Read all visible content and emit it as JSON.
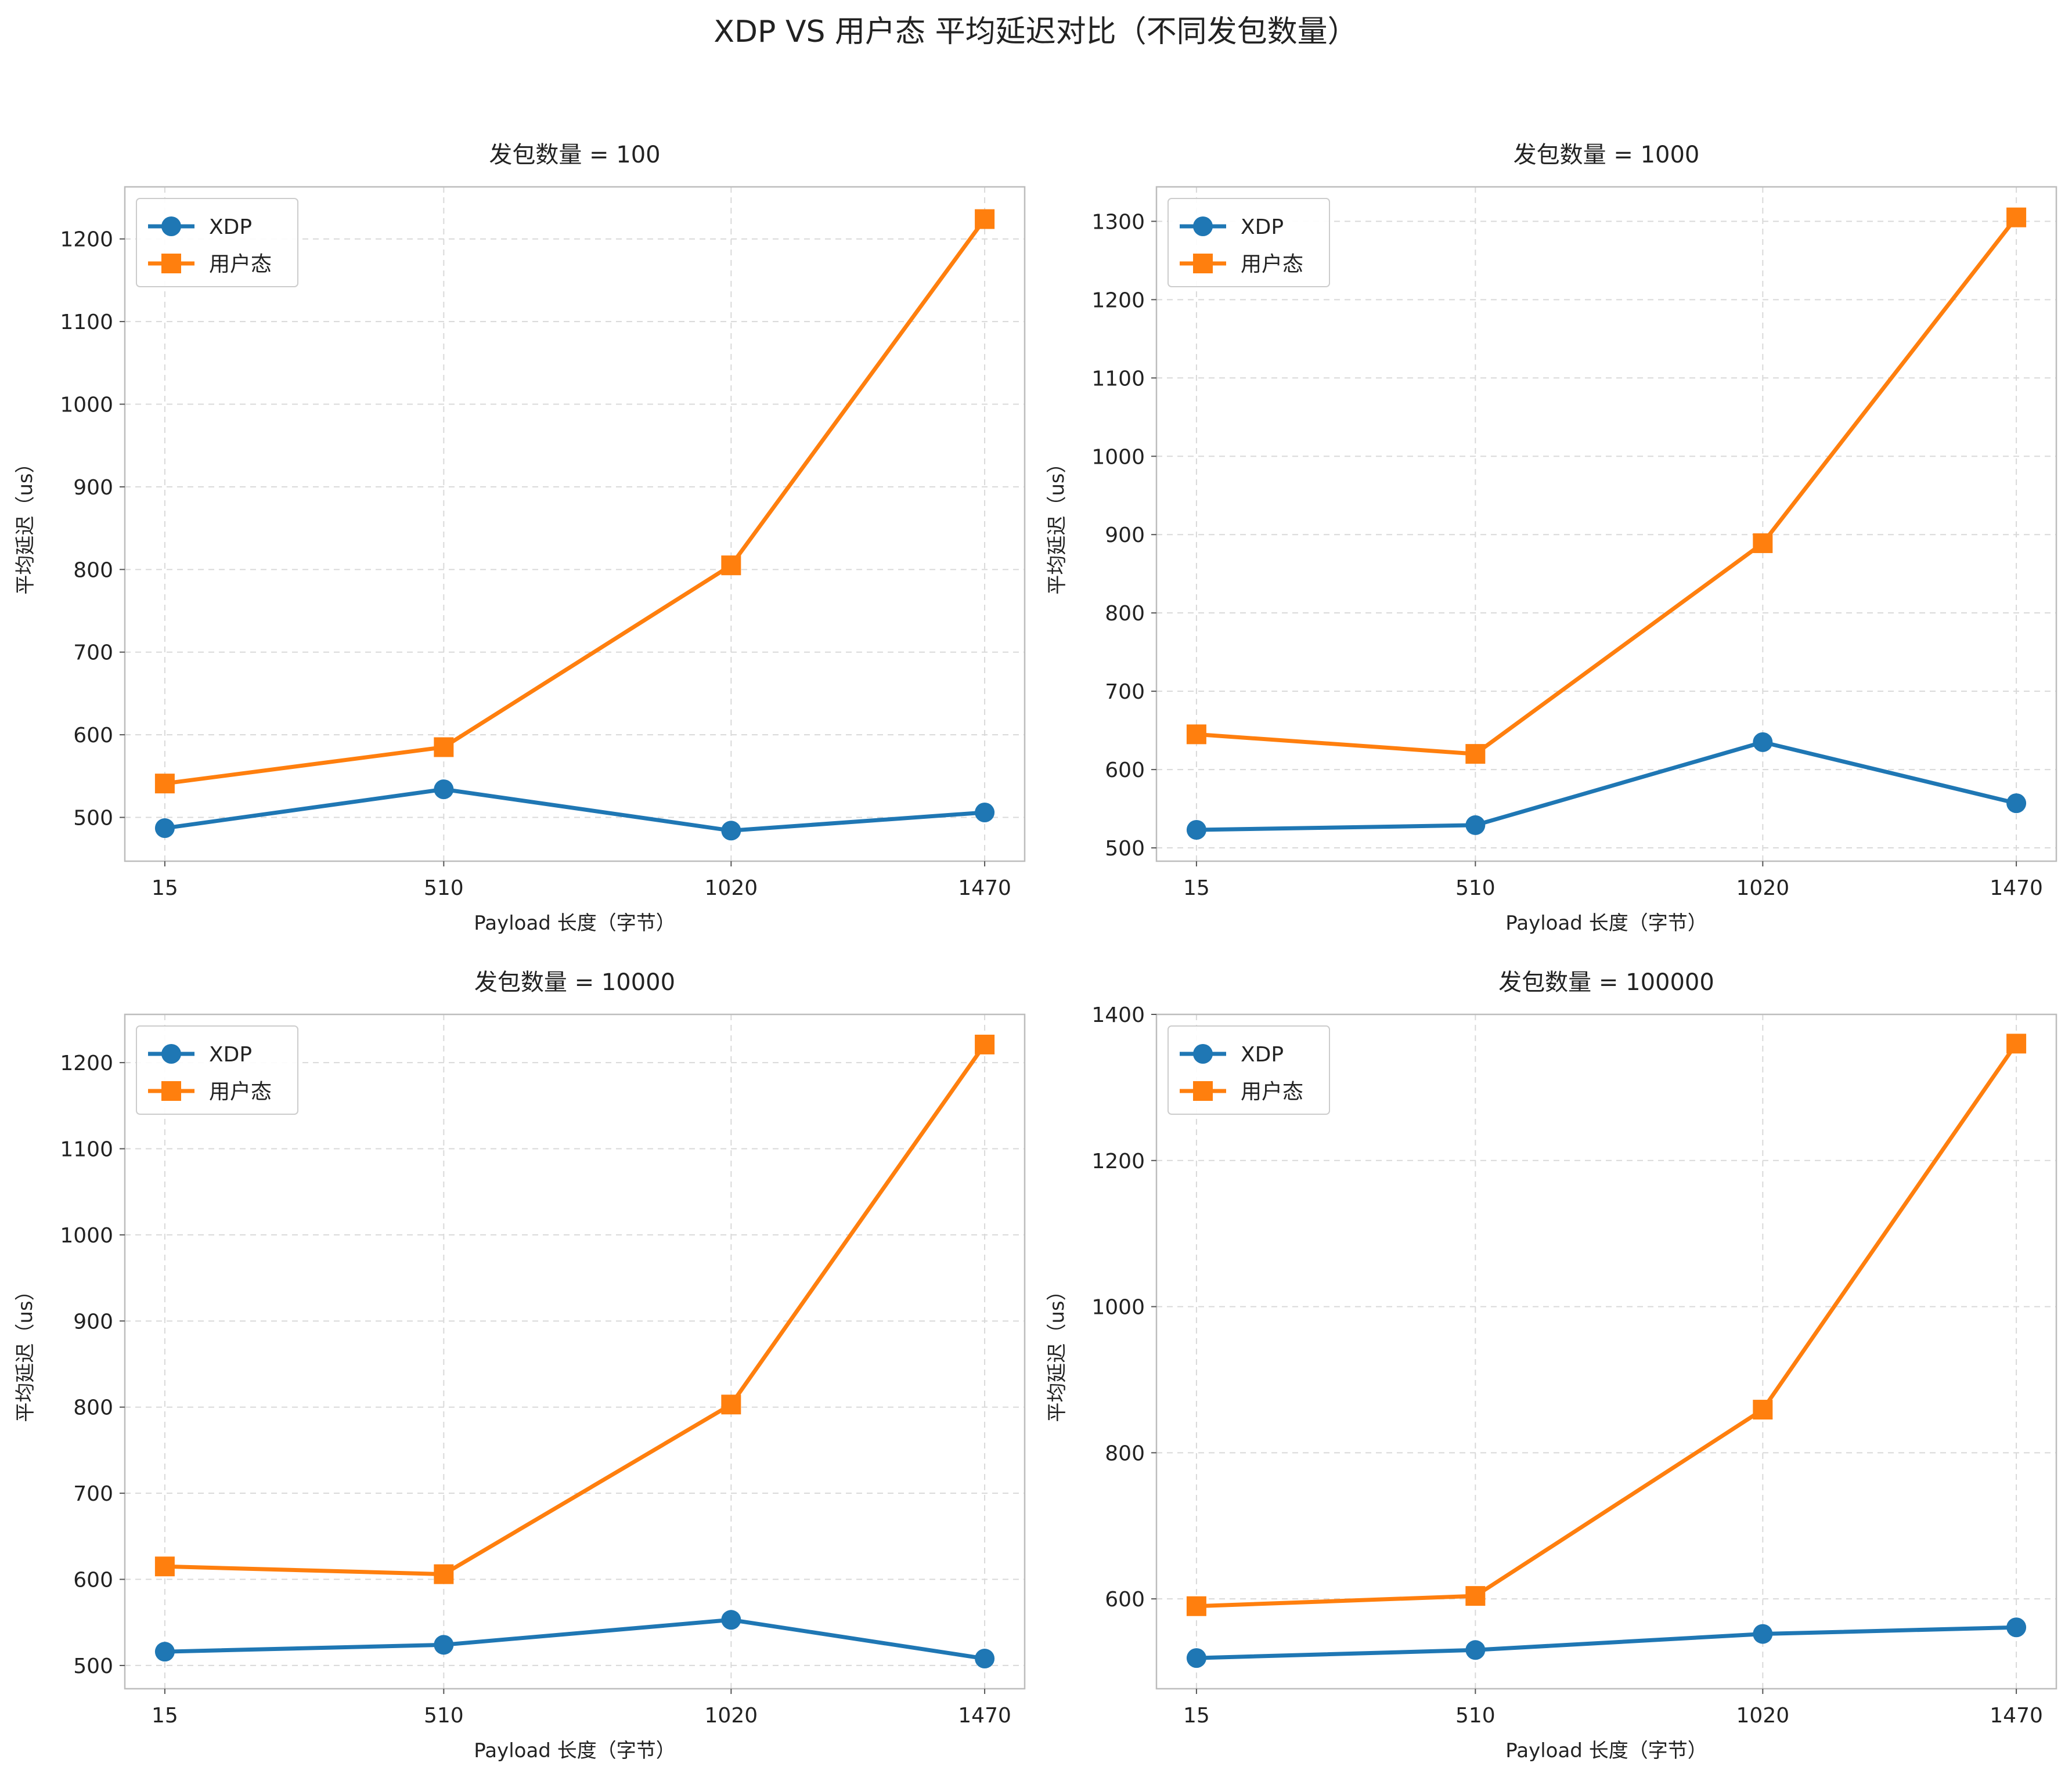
{
  "figure": {
    "title": "XDP VS 用户态 平均延迟对比（不同发包数量）"
  },
  "colors": {
    "xdp": "#1f77b4",
    "user": "#ff7f0e"
  },
  "chart_data": [
    {
      "type": "line",
      "title": "发包数量 = 100",
      "xlabel": "Payload 长度（字节）",
      "ylabel": "平均延迟（us）",
      "categories": [
        "15",
        "510",
        "1020",
        "1470"
      ],
      "x": [
        15,
        510,
        1020,
        1470
      ],
      "xlim": [
        -56,
        1541
      ],
      "ylim": [
        447,
        1263
      ],
      "yticks": [
        500,
        600,
        700,
        800,
        900,
        1000,
        1100,
        1200
      ],
      "grid": true,
      "legend": "top-left",
      "series": [
        {
          "name": "XDP",
          "marker": "circle",
          "values": [
            487,
            534,
            484,
            506
          ]
        },
        {
          "name": "用户态",
          "marker": "square",
          "values": [
            541,
            585,
            805,
            1224
          ]
        }
      ]
    },
    {
      "type": "line",
      "title": "发包数量 = 1000",
      "xlabel": "Payload 长度（字节）",
      "ylabel": "平均延迟（us）",
      "categories": [
        "15",
        "510",
        "1020",
        "1470"
      ],
      "x": [
        15,
        510,
        1020,
        1470
      ],
      "xlim": [
        -56,
        1541
      ],
      "ylim": [
        483,
        1344
      ],
      "yticks": [
        500,
        600,
        700,
        800,
        900,
        1000,
        1100,
        1200,
        1300
      ],
      "grid": true,
      "legend": "top-left",
      "series": [
        {
          "name": "XDP",
          "marker": "circle",
          "values": [
            523,
            529,
            635,
            557
          ]
        },
        {
          "name": "用户态",
          "marker": "square",
          "values": [
            645,
            620,
            889,
            1305
          ]
        }
      ]
    },
    {
      "type": "line",
      "title": "发包数量 = 10000",
      "xlabel": "Payload 长度（字节）",
      "ylabel": "平均延迟（us）",
      "categories": [
        "15",
        "510",
        "1020",
        "1470"
      ],
      "x": [
        15,
        510,
        1020,
        1470
      ],
      "xlim": [
        -56,
        1541
      ],
      "ylim": [
        473,
        1256
      ],
      "yticks": [
        500,
        600,
        700,
        800,
        900,
        1000,
        1100,
        1200
      ],
      "grid": true,
      "legend": "top-left",
      "series": [
        {
          "name": "XDP",
          "marker": "circle",
          "values": [
            516,
            524,
            553,
            508
          ]
        },
        {
          "name": "用户态",
          "marker": "square",
          "values": [
            615,
            606,
            803,
            1221
          ]
        }
      ]
    },
    {
      "type": "line",
      "title": "发包数量 = 100000",
      "xlabel": "Payload 长度（字节）",
      "ylabel": "平均延迟（us）",
      "categories": [
        "15",
        "510",
        "1020",
        "1470"
      ],
      "x": [
        15,
        510,
        1020,
        1470
      ],
      "xlim": [
        -56,
        1541
      ],
      "ylim": [
        477,
        1400
      ],
      "yticks": [
        600,
        800,
        1000,
        1200,
        1400
      ],
      "grid": true,
      "legend": "top-left",
      "series": [
        {
          "name": "XDP",
          "marker": "circle",
          "values": [
            519,
            530,
            552,
            561
          ]
        },
        {
          "name": "用户态",
          "marker": "square",
          "values": [
            590,
            604,
            859,
            1360
          ]
        }
      ]
    }
  ]
}
